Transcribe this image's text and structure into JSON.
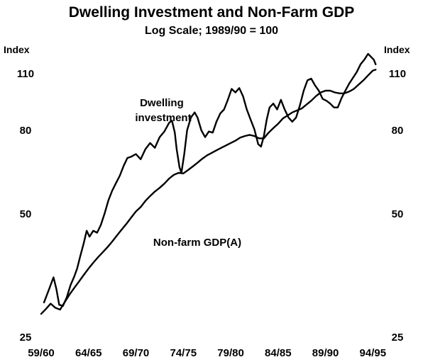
{
  "chart_data": {
    "type": "line",
    "title": "Dwelling Investment and Non-Farm GDP",
    "subtitle": "Log Scale; 1989/90 = 100",
    "y_unit_left": "Index",
    "y_unit_right": "Index",
    "y_scale": "log",
    "ylim": [
      25,
      125
    ],
    "y_ticks": [
      25,
      50,
      80,
      110
    ],
    "xlim": [
      1959.5,
      1995.0
    ],
    "x_ticks": [
      {
        "value": 1959.5,
        "label": "59/60"
      },
      {
        "value": 1964.5,
        "label": "64/65"
      },
      {
        "value": 1969.5,
        "label": "69/70"
      },
      {
        "value": 1974.5,
        "label": "74/75"
      },
      {
        "value": 1979.5,
        "label": "79/80"
      },
      {
        "value": 1984.5,
        "label": "84/85"
      },
      {
        "value": 1989.5,
        "label": "89/90"
      },
      {
        "value": 1994.5,
        "label": "94/95"
      }
    ],
    "grid": false,
    "series": [
      {
        "name": "Dwelling investment",
        "x": [
          1959.8,
          1960.3,
          1960.8,
          1961.1,
          1961.4,
          1961.8,
          1962.2,
          1962.6,
          1963.0,
          1963.3,
          1963.6,
          1964.0,
          1964.3,
          1964.6,
          1965.0,
          1965.4,
          1965.8,
          1966.2,
          1966.6,
          1967.0,
          1967.4,
          1967.8,
          1968.2,
          1968.6,
          1969.0,
          1969.5,
          1970.0,
          1970.5,
          1971.0,
          1971.5,
          1972.0,
          1972.5,
          1973.0,
          1973.3,
          1973.6,
          1973.8,
          1974.1,
          1974.3,
          1974.6,
          1974.9,
          1975.3,
          1975.7,
          1976.0,
          1976.4,
          1976.8,
          1977.2,
          1977.6,
          1978.0,
          1978.4,
          1978.8,
          1979.2,
          1979.6,
          1980.0,
          1980.4,
          1980.8,
          1981.2,
          1981.6,
          1982.0,
          1982.4,
          1982.7,
          1983.0,
          1983.3,
          1983.6,
          1984.0,
          1984.4,
          1984.8,
          1985.2,
          1985.6,
          1986.0,
          1986.4,
          1986.8,
          1987.2,
          1987.6,
          1988.0,
          1988.4,
          1988.8,
          1989.2,
          1989.6,
          1990.0,
          1990.4,
          1990.8,
          1991.2,
          1991.6,
          1992.0,
          1992.4,
          1992.8,
          1993.2,
          1993.6,
          1994.0,
          1994.3,
          1994.6,
          1994.8
        ],
        "values": [
          30.4,
          32.6,
          35.0,
          32.8,
          30.0,
          29.8,
          31.3,
          33.5,
          35.2,
          36.8,
          39.2,
          42.5,
          45.5,
          44.0,
          45.5,
          45.0,
          47.0,
          50.2,
          54.0,
          57.0,
          59.5,
          62.0,
          65.5,
          68.5,
          69.0,
          70.0,
          68.0,
          72.0,
          74.5,
          72.5,
          77.0,
          79.5,
          83.5,
          84.5,
          79.0,
          72.0,
          65.0,
          63.0,
          70.0,
          80.0,
          86.0,
          88.5,
          86.0,
          80.0,
          77.0,
          79.5,
          79.0,
          84.0,
          88.0,
          90.0,
          95.0,
          101.0,
          99.0,
          101.5,
          97.0,
          90.0,
          85.0,
          80.5,
          74.0,
          73.0,
          77.5,
          85.0,
          91.0,
          93.0,
          90.0,
          95.0,
          90.0,
          86.0,
          84.0,
          86.0,
          92.0,
          100.0,
          106.0,
          107.0,
          103.0,
          100.0,
          95.5,
          94.5,
          93.0,
          91.0,
          91.0,
          96.0,
          100.0,
          104.0,
          107.5,
          111.0,
          116.0,
          119.0,
          123.0,
          121.0,
          119.0,
          116.0
        ]
      },
      {
        "name": "Non-farm GDP(A)",
        "x": [
          1959.5,
          1960.0,
          1960.5,
          1961.0,
          1961.5,
          1962.0,
          1962.5,
          1963.0,
          1963.5,
          1964.0,
          1964.5,
          1965.0,
          1965.5,
          1966.0,
          1966.5,
          1967.0,
          1967.5,
          1968.0,
          1968.5,
          1969.0,
          1969.5,
          1970.0,
          1970.5,
          1971.0,
          1971.5,
          1972.0,
          1972.5,
          1973.0,
          1973.5,
          1974.0,
          1974.5,
          1975.0,
          1975.5,
          1976.0,
          1976.5,
          1977.0,
          1977.5,
          1978.0,
          1978.5,
          1979.0,
          1979.5,
          1980.0,
          1980.5,
          1981.0,
          1981.5,
          1982.0,
          1982.5,
          1983.0,
          1983.5,
          1984.0,
          1984.5,
          1985.0,
          1985.5,
          1986.0,
          1986.5,
          1987.0,
          1987.5,
          1988.0,
          1988.5,
          1989.0,
          1989.5,
          1990.0,
          1990.5,
          1991.0,
          1991.5,
          1992.0,
          1992.5,
          1993.0,
          1993.5,
          1994.0,
          1994.5,
          1994.8
        ],
        "values": [
          28.5,
          29.3,
          30.2,
          29.5,
          29.2,
          30.5,
          31.8,
          33.0,
          34.2,
          35.5,
          36.8,
          38.0,
          39.2,
          40.3,
          41.5,
          42.8,
          44.3,
          45.8,
          47.3,
          49.0,
          50.7,
          52.0,
          53.8,
          55.3,
          56.7,
          57.9,
          59.3,
          61.0,
          62.3,
          63.0,
          62.8,
          64.0,
          65.3,
          66.7,
          68.2,
          69.5,
          70.5,
          71.5,
          72.5,
          73.5,
          74.5,
          75.5,
          76.8,
          77.5,
          78.0,
          77.5,
          76.5,
          76.5,
          79.0,
          81.0,
          83.0,
          85.5,
          87.0,
          88.5,
          89.5,
          90.5,
          92.5,
          94.5,
          97.0,
          99.0,
          100.0,
          100.0,
          99.0,
          98.5,
          98.5,
          99.5,
          101.0,
          103.5,
          106.0,
          109.0,
          112.0,
          112.5
        ]
      }
    ]
  }
}
